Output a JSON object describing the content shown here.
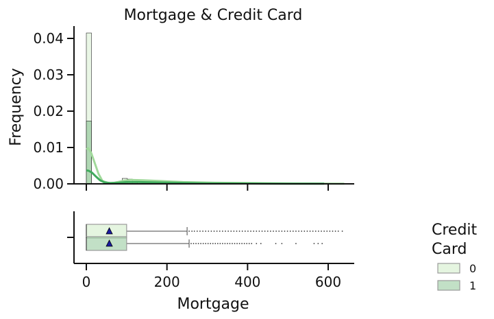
{
  "chart_data": {
    "type": "histogram-boxplot",
    "title": "Mortgage & Credit Card",
    "xlabel": "Mortgage",
    "ylabel": "Frequency",
    "xlim": [
      -30,
      670
    ],
    "ylim": [
      0,
      0.044
    ],
    "x_ticks": [
      0,
      200,
      400,
      600
    ],
    "y_ticks": [
      0.0,
      0.01,
      0.02,
      0.03,
      0.04
    ],
    "y_tick_labels": [
      "0.00",
      "0.01",
      "0.02",
      "0.03",
      "0.04"
    ],
    "bin_width": 12.7,
    "legend": {
      "title": "Credit\nCard",
      "placement": "right",
      "entries": [
        "0",
        "1"
      ]
    },
    "series": [
      {
        "name": "0",
        "color": "#e5f5e0",
        "kde_color": "#a1d99b",
        "hist": [
          {
            "x0": 0,
            "density": 0.0415
          },
          {
            "x0": 88.9,
            "density": 0.0015
          },
          {
            "x0": 101.6,
            "density": 0.0013
          },
          {
            "x0": 114.3,
            "density": 0.0011
          },
          {
            "x0": 127,
            "density": 0.0009
          }
        ],
        "kde": [
          [
            0,
            0.0095
          ],
          [
            5,
            0.0098
          ],
          [
            12,
            0.0085
          ],
          [
            20,
            0.006
          ],
          [
            30,
            0.0028
          ],
          [
            40,
            0.0008
          ],
          [
            55,
            0.0002
          ],
          [
            70,
            0.0003
          ],
          [
            90,
            0.0008
          ],
          [
            110,
            0.0011
          ],
          [
            140,
            0.001
          ],
          [
            180,
            0.0008
          ],
          [
            240,
            0.0005
          ],
          [
            320,
            0.0003
          ],
          [
            420,
            0.0002
          ],
          [
            520,
            0.0001
          ],
          [
            640,
            5e-05
          ]
        ],
        "box": {
          "min": 0,
          "q1": 0,
          "median": 0,
          "q3": 100,
          "whisker_high": 250,
          "mean": 57
        },
        "outliers": [
          255,
          262,
          268,
          275,
          282,
          289,
          296,
          303,
          310,
          317,
          324,
          331,
          338,
          345,
          352,
          359,
          366,
          373,
          380,
          387,
          394,
          401,
          408,
          415,
          422,
          429,
          436,
          443,
          450,
          457,
          464,
          471,
          478,
          485,
          492,
          499,
          506,
          513,
          520,
          527,
          534,
          541,
          548,
          555,
          562,
          569,
          576,
          583,
          590,
          597,
          604,
          611,
          618,
          625,
          635
        ]
      },
      {
        "name": "1",
        "color": "#a1d0a8",
        "kde_color": "#41ab5d",
        "hist": [
          {
            "x0": 0,
            "density": 0.0173
          },
          {
            "x0": 88.9,
            "density": 0.0007
          },
          {
            "x0": 101.6,
            "density": 0.0006
          },
          {
            "x0": 114.3,
            "density": 0.0005
          }
        ],
        "kde": [
          [
            0,
            0.0037
          ],
          [
            6,
            0.0036
          ],
          [
            14,
            0.0031
          ],
          [
            24,
            0.002
          ],
          [
            34,
            0.001
          ],
          [
            45,
            0.0004
          ],
          [
            60,
            0.0002
          ],
          [
            80,
            0.0003
          ],
          [
            100,
            0.0005
          ],
          [
            130,
            0.0005
          ],
          [
            170,
            0.0004
          ],
          [
            220,
            0.0003
          ],
          [
            300,
            0.00015
          ],
          [
            400,
            0.0001
          ],
          [
            500,
            5e-05
          ],
          [
            590,
            3e-05
          ]
        ],
        "box": {
          "min": 0,
          "q1": 0,
          "median": 0,
          "q3": 100,
          "whisker_high": 255,
          "mean": 57
        },
        "outliers": [
          260,
          266,
          272,
          278,
          284,
          290,
          296,
          302,
          308,
          314,
          320,
          326,
          332,
          338,
          344,
          350,
          356,
          362,
          368,
          374,
          380,
          386,
          392,
          398,
          404,
          410,
          422,
          433,
          470,
          485,
          520,
          565,
          575,
          585
        ]
      }
    ]
  }
}
